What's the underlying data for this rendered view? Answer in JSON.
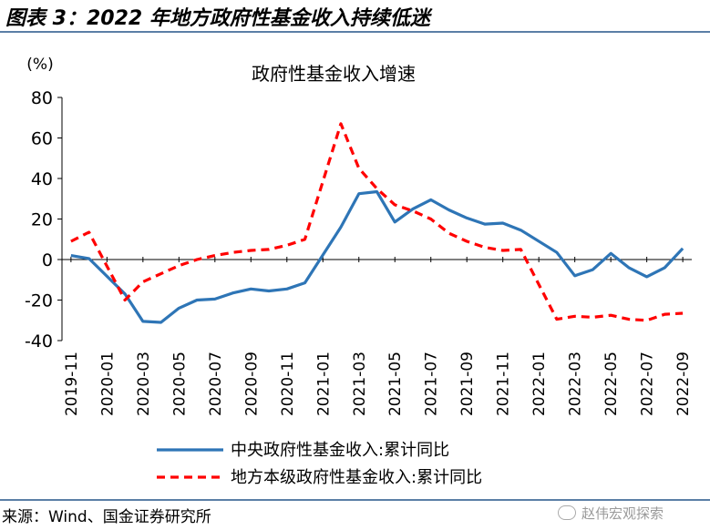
{
  "header": {
    "figure_title": "图表 3：2022 年地方政府性基金收入持续低迷"
  },
  "footer": {
    "source": "来源：Wind、国金证券研究所",
    "watermark": "赵伟宏观探索"
  },
  "chart_data": {
    "type": "line",
    "title": "政府性基金收入增速",
    "unit_label": "(%)",
    "ylim": [
      -40,
      80
    ],
    "yticks": [
      -40,
      -20,
      0,
      20,
      40,
      60,
      80
    ],
    "x": [
      "2019-11",
      "2019-12",
      "2020-01",
      "2020-02",
      "2020-03",
      "2020-04",
      "2020-05",
      "2020-06",
      "2020-07",
      "2020-08",
      "2020-09",
      "2020-10",
      "2020-11",
      "2020-12",
      "2021-01",
      "2021-02",
      "2021-03",
      "2021-04",
      "2021-05",
      "2021-06",
      "2021-07",
      "2021-08",
      "2021-09",
      "2021-10",
      "2021-11",
      "2021-12",
      "2022-01",
      "2022-02",
      "2022-03",
      "2022-04",
      "2022-05",
      "2022-06",
      "2022-07",
      "2022-08",
      "2022-09"
    ],
    "xtick_labels": [
      "2019-11",
      "2020-01",
      "2020-03",
      "2020-05",
      "2020-07",
      "2020-09",
      "2020-11",
      "2021-01",
      "2021-03",
      "2021-05",
      "2021-07",
      "2021-09",
      "2021-11",
      "2022-01",
      "2022-03",
      "2022-05",
      "2022-07",
      "2022-09"
    ],
    "legend_position": "bottom",
    "series": [
      {
        "name": "中央政府性基金收入:累计同比",
        "color": "#2e75b6",
        "style": "solid",
        "values": [
          2,
          0.5,
          null,
          -17,
          -30.5,
          -31,
          -24,
          -20,
          -19.5,
          -16.5,
          -14.5,
          -15.5,
          -14.5,
          -11.5,
          null,
          16,
          32.5,
          33.5,
          18.5,
          25,
          29.5,
          24.5,
          20.5,
          17.5,
          18,
          14.5,
          null,
          3.5,
          -8,
          -5,
          3,
          -4,
          -8.5,
          -4,
          5.5
        ]
      },
      {
        "name": "地方本级政府性基金收入:累计同比",
        "color": "#ff0000",
        "style": "dashed",
        "values": [
          9,
          13.5,
          null,
          -20,
          -11,
          -7,
          -3,
          0,
          2,
          3.5,
          4.5,
          5,
          7,
          10,
          null,
          67,
          45,
          35,
          27,
          24,
          20,
          13,
          9,
          6,
          4.5,
          5,
          null,
          -29.5,
          -28,
          -28.5,
          -27.5,
          -29.5,
          -30,
          -27,
          -26.5
        ]
      }
    ]
  }
}
